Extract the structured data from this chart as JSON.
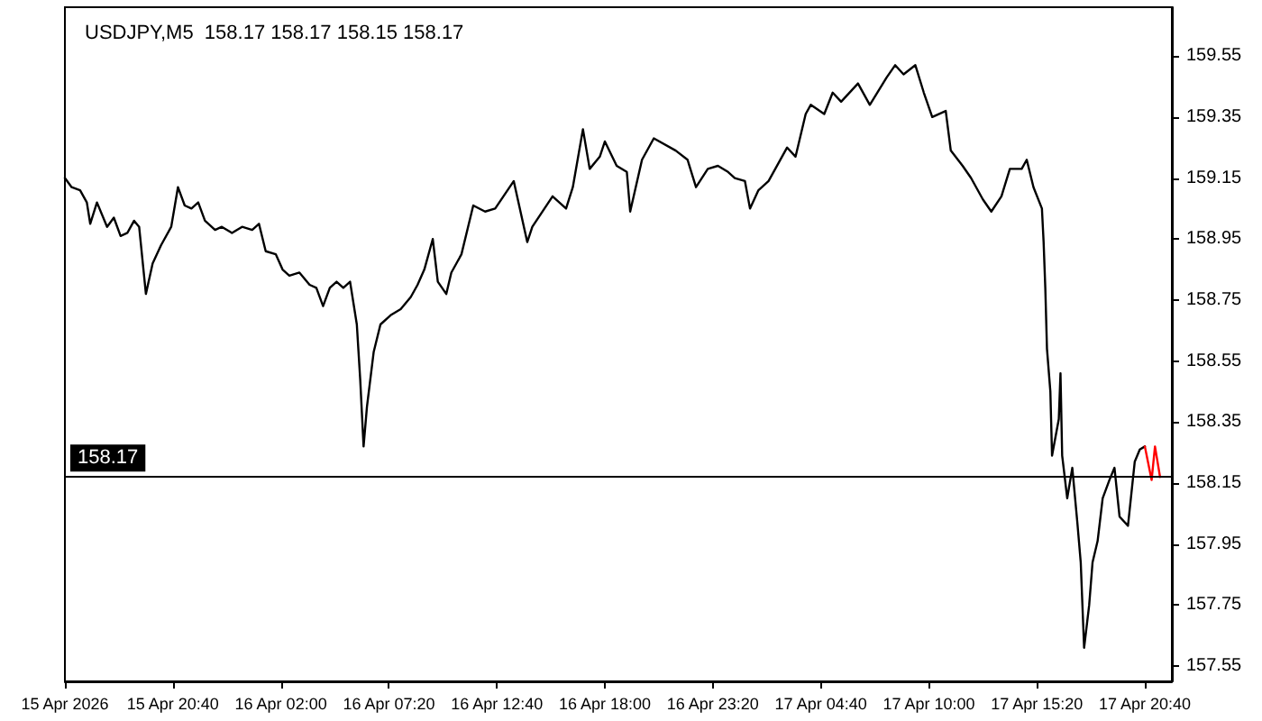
{
  "chart_data": {
    "type": "line",
    "title": "USDJPY,M5  158.17 158.17 158.15 158.17",
    "xlim": [
      "2026-04-15T15:20",
      "2026-04-17T22:00"
    ],
    "ylim": [
      157.5,
      159.71
    ],
    "xticks": [
      {
        "value": "2026-04-15T15:20",
        "label": "15 Apr 2026"
      },
      {
        "value": "2026-04-15T20:40",
        "label": "15 Apr 20:40"
      },
      {
        "value": "2026-04-16T02:00",
        "label": "16 Apr 02:00"
      },
      {
        "value": "2026-04-16T07:20",
        "label": "16 Apr 07:20"
      },
      {
        "value": "2026-04-16T12:40",
        "label": "16 Apr 12:40"
      },
      {
        "value": "2026-04-16T18:00",
        "label": "16 Apr 18:00"
      },
      {
        "value": "2026-04-16T23:20",
        "label": "16 Apr 23:20"
      },
      {
        "value": "2026-04-17T04:40",
        "label": "17 Apr 04:40"
      },
      {
        "value": "2026-04-17T10:00",
        "label": "17 Apr 10:00"
      },
      {
        "value": "2026-04-17T15:20",
        "label": "17 Apr 15:20"
      },
      {
        "value": "2026-04-17T20:40",
        "label": "17 Apr 20:40"
      }
    ],
    "yticks": [
      157.55,
      157.75,
      157.95,
      158.15,
      158.35,
      158.55,
      158.75,
      158.95,
      159.15,
      159.35,
      159.55
    ],
    "marker": "none",
    "series": [
      {
        "color": "#000000",
        "x": [
          "2026-04-15T15:20",
          "2026-04-15T15:40",
          "2026-04-15T16:05",
          "2026-04-15T16:25",
          "2026-04-15T16:35",
          "2026-04-15T16:55",
          "2026-04-15T17:25",
          "2026-04-15T17:45",
          "2026-04-15T18:05",
          "2026-04-15T18:25",
          "2026-04-15T18:45",
          "2026-04-15T19:00",
          "2026-04-15T19:20",
          "2026-04-15T19:40",
          "2026-04-15T20:05",
          "2026-04-15T20:35",
          "2026-04-15T20:55",
          "2026-04-15T21:15",
          "2026-04-15T21:35",
          "2026-04-15T21:55",
          "2026-04-15T22:15",
          "2026-04-15T22:45",
          "2026-04-15T23:05",
          "2026-04-15T23:35",
          "2026-04-16T00:05",
          "2026-04-16T00:35",
          "2026-04-16T00:55",
          "2026-04-16T01:15",
          "2026-04-16T01:45",
          "2026-04-16T02:05",
          "2026-04-16T02:25",
          "2026-04-16T02:55",
          "2026-04-16T03:25",
          "2026-04-16T03:45",
          "2026-04-16T04:05",
          "2026-04-16T04:25",
          "2026-04-16T04:45",
          "2026-04-16T05:05",
          "2026-04-16T05:25",
          "2026-04-16T05:45",
          "2026-04-16T05:55",
          "2026-04-16T06:05",
          "2026-04-16T06:15",
          "2026-04-16T06:35",
          "2026-04-16T06:55",
          "2026-04-16T07:25",
          "2026-04-16T07:55",
          "2026-04-16T08:25",
          "2026-04-16T08:45",
          "2026-04-16T09:05",
          "2026-04-16T09:30",
          "2026-04-16T09:45",
          "2026-04-16T10:10",
          "2026-04-16T10:25",
          "2026-04-16T10:55",
          "2026-04-16T11:30",
          "2026-04-16T12:05",
          "2026-04-16T12:35",
          "2026-04-16T13:30",
          "2026-04-16T14:10",
          "2026-04-16T14:25",
          "2026-04-16T15:25",
          "2026-04-16T16:05",
          "2026-04-16T16:25",
          "2026-04-16T16:55",
          "2026-04-16T17:15",
          "2026-04-16T17:45",
          "2026-04-16T18:00",
          "2026-04-16T18:35",
          "2026-04-16T19:05",
          "2026-04-16T19:15",
          "2026-04-16T19:50",
          "2026-04-16T20:25",
          "2026-04-16T21:30",
          "2026-04-16T22:05",
          "2026-04-16T22:30",
          "2026-04-16T23:05",
          "2026-04-16T23:35",
          "2026-04-17T00:05",
          "2026-04-17T00:25",
          "2026-04-17T00:55",
          "2026-04-17T01:10",
          "2026-04-17T01:35",
          "2026-04-17T02:05",
          "2026-04-17T03:00",
          "2026-04-17T03:25",
          "2026-04-17T03:55",
          "2026-04-17T04:10",
          "2026-04-17T04:50",
          "2026-04-17T05:15",
          "2026-04-17T05:40",
          "2026-04-17T06:30",
          "2026-04-17T07:05",
          "2026-04-17T07:55",
          "2026-04-17T08:20",
          "2026-04-17T08:45",
          "2026-04-17T09:20",
          "2026-04-17T09:45",
          "2026-04-17T10:10",
          "2026-04-17T10:50",
          "2026-04-17T11:05",
          "2026-04-17T11:40",
          "2026-04-17T12:05",
          "2026-04-17T12:40",
          "2026-04-17T13:05",
          "2026-04-17T13:35",
          "2026-04-17T14:00",
          "2026-04-17T14:35",
          "2026-04-17T14:50",
          "2026-04-17T15:10",
          "2026-04-17T15:35",
          "2026-04-17T15:40",
          "2026-04-17T15:45",
          "2026-04-17T15:50",
          "2026-04-17T16:00",
          "2026-04-17T16:05",
          "2026-04-17T16:25",
          "2026-04-17T16:30",
          "2026-04-17T16:35",
          "2026-04-17T16:50",
          "2026-04-17T17:05",
          "2026-04-17T17:20",
          "2026-04-17T17:30",
          "2026-04-17T17:40",
          "2026-04-17T17:55",
          "2026-04-17T18:05",
          "2026-04-17T18:20",
          "2026-04-17T18:35",
          "2026-04-17T18:55",
          "2026-04-17T19:10",
          "2026-04-17T19:25",
          "2026-04-17T19:50",
          "2026-04-17T20:10",
          "2026-04-17T20:25",
          "2026-04-17T20:40"
        ],
        "values": [
          159.15,
          159.12,
          159.11,
          159.07,
          159.0,
          159.07,
          158.99,
          159.02,
          158.96,
          158.97,
          159.01,
          158.99,
          158.77,
          158.87,
          158.93,
          158.99,
          159.12,
          159.06,
          159.05,
          159.07,
          159.01,
          158.98,
          158.99,
          158.97,
          158.99,
          158.98,
          159.0,
          158.91,
          158.9,
          158.85,
          158.83,
          158.84,
          158.8,
          158.79,
          158.73,
          158.79,
          158.81,
          158.79,
          158.81,
          158.67,
          158.49,
          158.27,
          158.4,
          158.58,
          158.67,
          158.7,
          158.72,
          158.76,
          158.8,
          158.85,
          158.95,
          158.81,
          158.77,
          158.84,
          158.9,
          159.06,
          159.04,
          159.05,
          159.14,
          158.94,
          158.99,
          159.09,
          159.05,
          159.12,
          159.31,
          159.18,
          159.22,
          159.27,
          159.19,
          159.17,
          159.04,
          159.21,
          159.28,
          159.24,
          159.21,
          159.12,
          159.18,
          159.19,
          159.17,
          159.15,
          159.14,
          159.05,
          159.11,
          159.14,
          159.25,
          159.22,
          159.36,
          159.39,
          159.36,
          159.43,
          159.4,
          159.46,
          159.39,
          159.48,
          159.52,
          159.49,
          159.52,
          159.43,
          159.35,
          159.37,
          159.24,
          159.19,
          159.15,
          159.08,
          159.04,
          159.09,
          159.18,
          159.18,
          159.21,
          159.12,
          159.05,
          158.94,
          158.79,
          158.59,
          158.45,
          158.24,
          158.36,
          158.51,
          158.24,
          158.1,
          158.2,
          158.02,
          157.89,
          157.61,
          157.75,
          157.89,
          157.96,
          158.1,
          158.16,
          158.2,
          158.04,
          158.01,
          158.22,
          158.26,
          158.27
        ]
      },
      {
        "color": "#ff0000",
        "x": [
          "2026-04-17T20:40",
          "2026-04-17T21:00",
          "2026-04-17T21:10",
          "2026-04-17T21:25"
        ],
        "values": [
          158.27,
          158.16,
          158.27,
          158.17
        ]
      }
    ],
    "ref_lines": [
      {
        "axis": "y",
        "value": 158.17,
        "label": "158.17",
        "color": "#000000"
      }
    ]
  }
}
